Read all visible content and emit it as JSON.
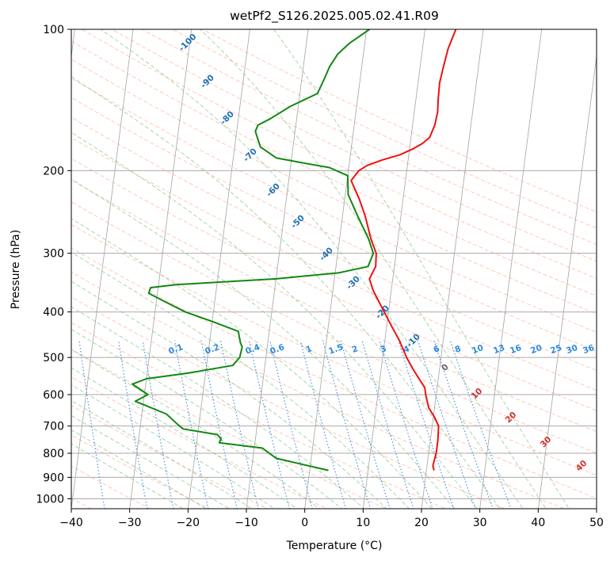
{
  "chart_data": {
    "type": "line",
    "title": "wetPf2_S126.2025.005.02.41.R09",
    "xlabel": "Temperature (°C)",
    "ylabel": "Pressure (hPa)",
    "xlim": [
      -40,
      50
    ],
    "ylim": [
      1050,
      100
    ],
    "y_scale": "log",
    "x_ticks": [
      "−40",
      "−30",
      "−20",
      "−10",
      "0",
      "10",
      "20",
      "30",
      "40",
      "50"
    ],
    "x_tick_values": [
      -40,
      -30,
      -20,
      -10,
      0,
      10,
      20,
      30,
      40,
      50
    ],
    "y_ticks": [
      "100",
      "200",
      "300",
      "400",
      "500",
      "600",
      "700",
      "800",
      "900",
      "1000"
    ],
    "y_tick_values": [
      100,
      200,
      300,
      400,
      500,
      600,
      700,
      800,
      900,
      1000
    ],
    "grid": true,
    "colors": {
      "temperature": "#ee1111",
      "dewpoint": "#118811",
      "isotherm": "#999999",
      "dry_adiabat": "#ff8866",
      "moist_adiabat": "#55aa55",
      "mixing_ratio": "#1a78d6",
      "dry_label": "#1f6fb0",
      "moist_label": "#d03030"
    },
    "series": [
      {
        "key": "temperature",
        "points": [
          [
            21.3,
            870
          ],
          [
            21.0,
            850
          ],
          [
            21.3,
            800
          ],
          [
            21.3,
            750
          ],
          [
            21.1,
            700
          ],
          [
            20.2,
            670
          ],
          [
            19.0,
            640
          ],
          [
            18.2,
            600
          ],
          [
            17.9,
            580
          ],
          [
            16.7,
            555
          ],
          [
            15.5,
            530
          ],
          [
            14.1,
            500
          ],
          [
            12.5,
            460
          ],
          [
            10.9,
            430
          ],
          [
            8.7,
            390
          ],
          [
            6.9,
            360
          ],
          [
            6.0,
            340
          ],
          [
            6.8,
            320
          ],
          [
            6.6,
            300
          ],
          [
            5.4,
            280
          ],
          [
            3.9,
            250
          ],
          [
            2.5,
            230
          ],
          [
            0.7,
            210
          ],
          [
            1.8,
            200
          ],
          [
            3.1,
            195
          ],
          [
            5.5,
            190
          ],
          [
            8.5,
            185
          ],
          [
            10.5,
            180
          ],
          [
            12.1,
            175
          ],
          [
            13.2,
            170
          ],
          [
            13.8,
            160
          ],
          [
            14.0,
            150
          ],
          [
            13.8,
            140
          ],
          [
            13.7,
            130
          ],
          [
            14.0,
            120
          ],
          [
            14.4,
            110
          ],
          [
            15.3,
            100
          ]
        ]
      },
      {
        "key": "dewpoint",
        "points": [
          [
            3.2,
            870
          ],
          [
            -6.0,
            820
          ],
          [
            -8.6,
            780
          ],
          [
            -16.1,
            760
          ],
          [
            -15.9,
            745
          ],
          [
            -16.6,
            730
          ],
          [
            -22.6,
            710
          ],
          [
            -23.6,
            695
          ],
          [
            -25.8,
            660
          ],
          [
            -31.4,
            620
          ],
          [
            -29.4,
            600
          ],
          [
            -32.3,
            570
          ],
          [
            -30.0,
            555
          ],
          [
            -23.0,
            540
          ],
          [
            -15.5,
            520
          ],
          [
            -14.5,
            500
          ],
          [
            -14.3,
            475
          ],
          [
            -14.7,
            465
          ],
          [
            -15.3,
            440
          ],
          [
            -19.8,
            420
          ],
          [
            -24.8,
            400
          ],
          [
            -28.6,
            380
          ],
          [
            -31.5,
            365
          ],
          [
            -31.3,
            355
          ],
          [
            -27.0,
            350
          ],
          [
            -10.0,
            340
          ],
          [
            0.7,
            330
          ],
          [
            5.5,
            320
          ],
          [
            6.1,
            300
          ],
          [
            5.0,
            280
          ],
          [
            2.6,
            250
          ],
          [
            0.5,
            225
          ],
          [
            0.0,
            205
          ],
          [
            -3.3,
            197
          ],
          [
            -7.5,
            193
          ],
          [
            -12.6,
            188
          ],
          [
            -15.6,
            178
          ],
          [
            -16.8,
            165
          ],
          [
            -16.5,
            160
          ],
          [
            -14.5,
            155
          ],
          [
            -11.4,
            146
          ],
          [
            -7.0,
            137
          ],
          [
            -6.1,
            127
          ],
          [
            -5.5,
            120
          ],
          [
            -4.4,
            113
          ],
          [
            -2.6,
            107
          ],
          [
            0.5,
            100
          ]
        ]
      }
    ],
    "dry_adiabat_labels": [
      "-100",
      "-90",
      "-80",
      "-70",
      "-60",
      "-50",
      "-40",
      "-30",
      "-20",
      "-10",
      "0"
    ],
    "moist_adiabat_labels": [
      "10",
      "20",
      "30",
      "40"
    ],
    "mixing_ratio_labels": [
      "0.1",
      "0.2",
      "0.4",
      "0.6",
      "1",
      "1.5",
      "2",
      "3",
      "4",
      "6",
      "8",
      "10",
      "13",
      "16",
      "20",
      "25",
      "30",
      "36"
    ]
  }
}
